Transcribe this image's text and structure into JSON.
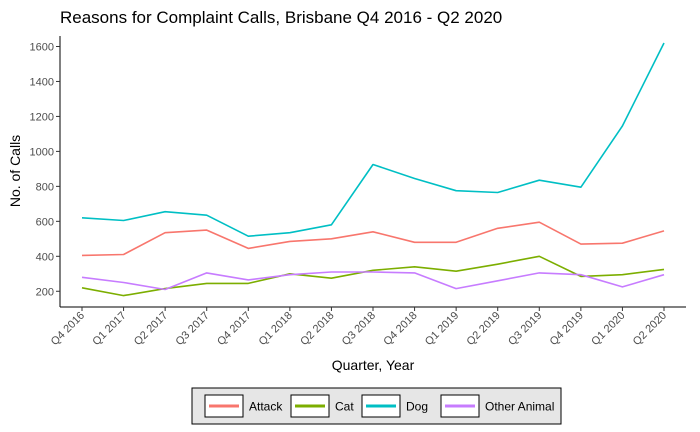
{
  "chart_data": {
    "type": "line",
    "title": "Reasons for Complaint Calls, Brisbane Q4 2016 - Q2 2020",
    "xlabel": "Quarter, Year",
    "ylabel": "No. of Calls",
    "categories": [
      "Q4 2016",
      "Q1 2017",
      "Q2 2017",
      "Q3 2017",
      "Q4 2017",
      "Q1 2018",
      "Q2 2018",
      "Q3 2018",
      "Q4 2018",
      "Q1 2019",
      "Q2 2019",
      "Q3 2019",
      "Q4 2019",
      "Q1 2020",
      "Q2 2020"
    ],
    "yticks": [
      200,
      400,
      600,
      800,
      1000,
      1200,
      1400,
      1600
    ],
    "ylim": [
      110,
      1660
    ],
    "grid": false,
    "legend_position": "bottom",
    "series": [
      {
        "name": "Attack",
        "color": "#F8766D",
        "values": [
          405,
          410,
          535,
          550,
          445,
          485,
          500,
          540,
          480,
          480,
          560,
          595,
          470,
          475,
          545
        ]
      },
      {
        "name": "Cat",
        "color": "#7CAE00",
        "values": [
          220,
          175,
          215,
          245,
          245,
          300,
          275,
          320,
          340,
          315,
          355,
          400,
          285,
          295,
          325
        ]
      },
      {
        "name": "Dog",
        "color": "#00BFC4",
        "values": [
          620,
          605,
          655,
          635,
          515,
          535,
          580,
          925,
          845,
          775,
          765,
          835,
          795,
          1145,
          1620
        ]
      },
      {
        "name": "Other Animal",
        "color": "#C77CFF",
        "values": [
          280,
          250,
          210,
          305,
          265,
          295,
          310,
          310,
          305,
          215,
          260,
          305,
          295,
          225,
          295
        ]
      }
    ]
  }
}
